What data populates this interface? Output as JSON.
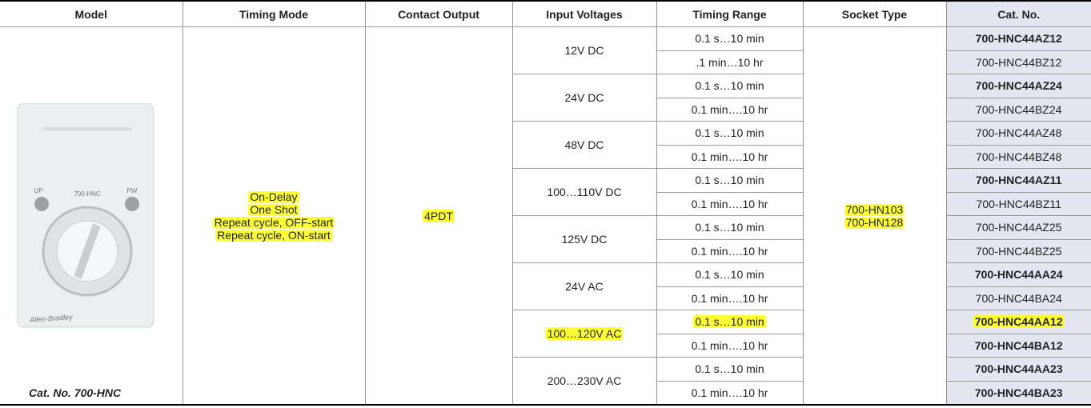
{
  "table": {
    "headers": [
      "Model",
      "Timing Mode",
      "Contact Output",
      "Input Voltages",
      "Timing Range",
      "Socket Type",
      "Cat. No."
    ],
    "model": {
      "image_text": [
        "UP",
        "700-HNC",
        "PW",
        "Allen-Bradley"
      ],
      "caption": "Cat. No. 700-HNC"
    },
    "timing_modes": [
      "On-Delay",
      "One Shot",
      "Repeat cycle, OFF-start",
      "Repeat cycle, ON-start"
    ],
    "contact_output": "4PDT",
    "socket_types": [
      "700-HN103",
      "700-HN128"
    ],
    "groups": [
      {
        "voltage": "12V DC",
        "highlight": false,
        "rows": [
          {
            "range": "0.1 s…10 min",
            "cat_no": "700-HNC44AZ12",
            "bold": true,
            "highlight": false
          },
          {
            "range": ".1 min…10 hr",
            "cat_no": "700-HNC44BZ12",
            "bold": false,
            "highlight": false
          }
        ]
      },
      {
        "voltage": "24V DC",
        "highlight": false,
        "rows": [
          {
            "range": "0.1 s…10 min",
            "cat_no": "700-HNC44AZ24",
            "bold": true,
            "highlight": false
          },
          {
            "range": "0.1 min….10 hr",
            "cat_no": "700-HNC44BZ24",
            "bold": false,
            "highlight": false
          }
        ]
      },
      {
        "voltage": "48V DC",
        "highlight": false,
        "rows": [
          {
            "range": "0.1 s…10 min",
            "cat_no": "700-HNC44AZ48",
            "bold": false,
            "highlight": false
          },
          {
            "range": "0.1 min….10 hr",
            "cat_no": "700-HNC44BZ48",
            "bold": false,
            "highlight": false
          }
        ]
      },
      {
        "voltage": "100…110V DC",
        "highlight": false,
        "rows": [
          {
            "range": "0.1 s…10 min",
            "cat_no": "700-HNC44AZ11",
            "bold": true,
            "highlight": false
          },
          {
            "range": "0.1 min….10 hr",
            "cat_no": "700-HNC44BZ11",
            "bold": false,
            "highlight": false
          }
        ]
      },
      {
        "voltage": "125V DC",
        "highlight": false,
        "rows": [
          {
            "range": "0.1 s…10 min",
            "cat_no": "700-HNC44AZ25",
            "bold": false,
            "highlight": false
          },
          {
            "range": "0.1 min….10 hr",
            "cat_no": "700-HNC44BZ25",
            "bold": false,
            "highlight": false
          }
        ]
      },
      {
        "voltage": "24V AC",
        "highlight": false,
        "rows": [
          {
            "range": "0.1 s…10 min",
            "cat_no": "700-HNC44AA24",
            "bold": true,
            "highlight": false
          },
          {
            "range": "0.1 min….10 hr",
            "cat_no": "700-HNC44BA24",
            "bold": false,
            "highlight": false
          }
        ]
      },
      {
        "voltage": "100…120V AC",
        "highlight": true,
        "rows": [
          {
            "range": "0.1 s…10 min",
            "cat_no": "700-HNC44AA12",
            "bold": true,
            "highlight": true
          },
          {
            "range": "0.1 min….10 hr",
            "cat_no": "700-HNC44BA12",
            "bold": true,
            "highlight": false
          }
        ]
      },
      {
        "voltage": "200…230V AC",
        "highlight": false,
        "rows": [
          {
            "range": "0.1 s…10 min",
            "cat_no": "700-HNC44AA23",
            "bold": true,
            "highlight": false
          },
          {
            "range": "0.1 min….10 hr",
            "cat_no": "700-HNC44BA23",
            "bold": true,
            "highlight": false
          }
        ]
      }
    ]
  }
}
